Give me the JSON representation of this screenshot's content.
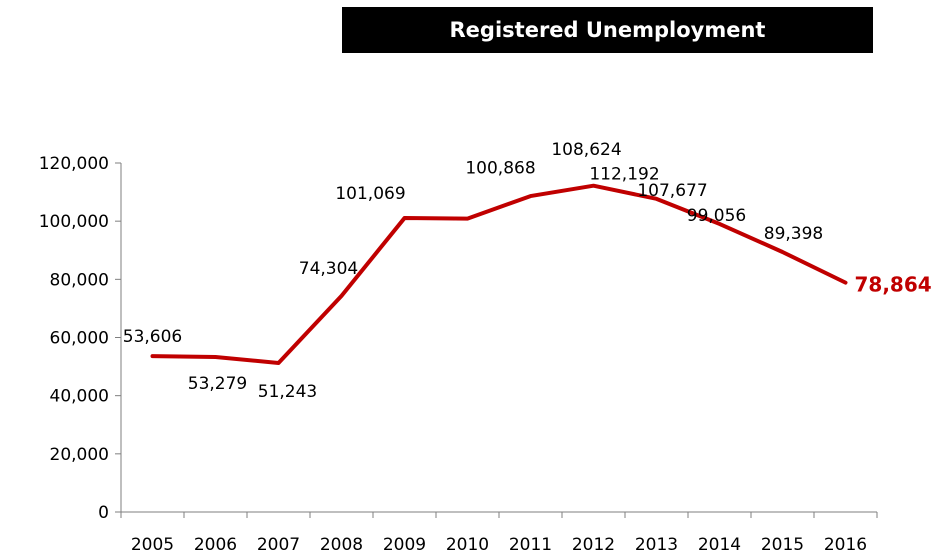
{
  "chart_data": {
    "type": "line",
    "title": "Registered Unemployment",
    "categories": [
      "2005",
      "2006",
      "2007",
      "2008",
      "2009",
      "2010",
      "2011",
      "2012",
      "2013",
      "2014",
      "2015",
      "2016"
    ],
    "series": [
      {
        "values": [
          53606,
          53279,
          51243,
          74304,
          101069,
          100868,
          108624,
          112192,
          107677,
          99056,
          89398,
          78864
        ],
        "labels": [
          "53,606",
          "53,279",
          "51,243",
          "74,304",
          "101,069",
          "100,868",
          "108,624",
          "112,192",
          "107,677",
          "99,056",
          "89,398",
          "78,864"
        ]
      }
    ],
    "y_ticks": [
      "0",
      "20,000",
      "40,000",
      "60,000",
      "80,000",
      "100,000",
      "120,000"
    ],
    "ylim": [
      0,
      120000
    ],
    "grid": false,
    "line_color": "#c00000",
    "highlight_last_label_color": "#c00000"
  }
}
